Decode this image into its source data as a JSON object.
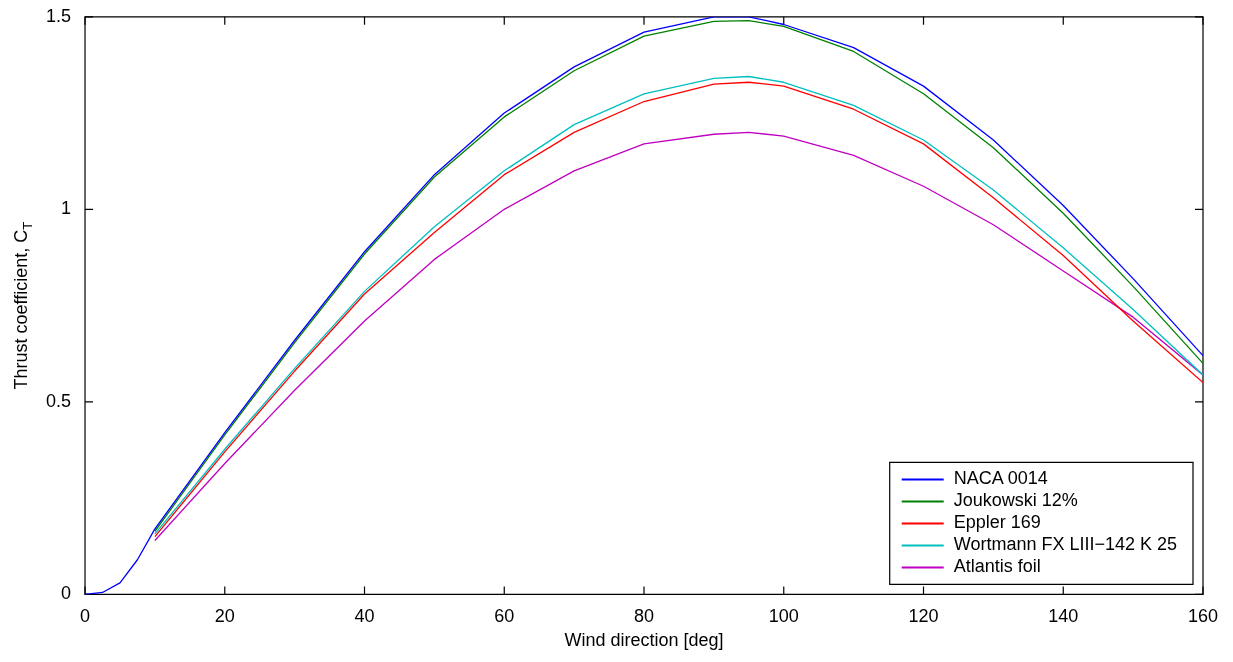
{
  "chart_data": {
    "type": "line",
    "xlabel": "Wind direction [deg]",
    "ylabel": "Thrust coefficient, C$_{T}$",
    "x": [
      0,
      2.5,
      5,
      7.5,
      10,
      20,
      30,
      40,
      50,
      60,
      70,
      80,
      90,
      95,
      100,
      110,
      120,
      130,
      140,
      150,
      160
    ],
    "xlim": [
      0,
      160
    ],
    "xticks": [
      0,
      20,
      40,
      60,
      80,
      100,
      120,
      140,
      160
    ],
    "ylim": [
      0,
      1.5
    ],
    "yticks": [
      0,
      0.5,
      1,
      1.5
    ],
    "grid": false,
    "legend": "bottom right",
    "marker": "none",
    "line_style": "solid",
    "series": [
      {
        "name": "NACA 0014",
        "color": "#0000ff",
        "values": [
          0,
          0.005,
          0.03,
          0.09,
          0.17,
          0.42,
          0.66,
          0.89,
          1.09,
          1.25,
          1.37,
          1.46,
          1.5,
          1.5,
          1.48,
          1.42,
          1.32,
          1.18,
          1.01,
          0.82,
          0.62
        ]
      },
      {
        "name": "Joukowski 12%",
        "color": "#008000",
        "x": [
          10,
          20,
          30,
          40,
          50,
          60,
          70,
          80,
          90,
          95,
          100,
          110,
          120,
          130,
          140,
          150,
          160
        ],
        "values": [
          0.164,
          0.414,
          0.654,
          0.884,
          1.084,
          1.24,
          1.36,
          1.45,
          1.488,
          1.49,
          1.475,
          1.41,
          1.3,
          1.16,
          0.99,
          0.8,
          0.6
        ]
      },
      {
        "name": "Eppler 169",
        "color": "#ff0000",
        "x": [
          10,
          20,
          30,
          40,
          50,
          60,
          70,
          80,
          90,
          95,
          100,
          110,
          120,
          130,
          140,
          150,
          160
        ],
        "values": [
          0.15,
          0.37,
          0.58,
          0.78,
          0.94,
          1.09,
          1.2,
          1.28,
          1.325,
          1.33,
          1.32,
          1.26,
          1.17,
          1.03,
          0.88,
          0.71,
          0.55
        ]
      },
      {
        "name": "Wortmann FX LIII−142 K 25",
        "color": "#00bfbf",
        "x": [
          10,
          20,
          30,
          40,
          50,
          60,
          70,
          80,
          90,
          95,
          100,
          110,
          120,
          130,
          140,
          150,
          160
        ],
        "values": [
          0.157,
          0.377,
          0.587,
          0.787,
          0.955,
          1.1,
          1.22,
          1.3,
          1.34,
          1.345,
          1.33,
          1.27,
          1.18,
          1.05,
          0.9,
          0.74,
          0.57
        ]
      },
      {
        "name": "Atlantis foil",
        "color": "#bf00bf",
        "x": [
          10,
          20,
          30,
          40,
          50,
          60,
          70,
          80,
          90,
          95,
          100,
          110,
          120,
          130,
          140,
          150,
          160
        ],
        "values": [
          0.14,
          0.34,
          0.53,
          0.71,
          0.87,
          1,
          1.1,
          1.17,
          1.195,
          1.2,
          1.19,
          1.14,
          1.06,
          0.96,
          0.84,
          0.72,
          0.57
        ]
      }
    ]
  }
}
